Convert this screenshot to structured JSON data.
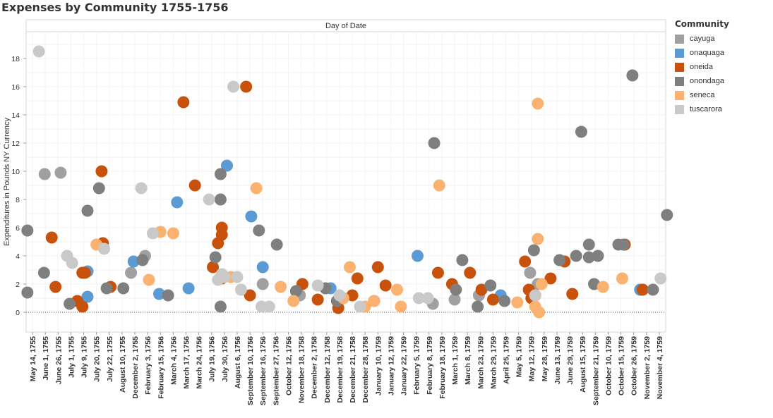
{
  "title": "Expenses by Community 1755-1756",
  "chart_data": {
    "type": "scatter",
    "title": "Expenses by Community 1755-1756",
    "header": "Day of Date",
    "ylabel": "Expenditures in Pounds NY Currency",
    "ylim": [
      -1.4,
      19.9
    ],
    "yticks": [
      0,
      2,
      4,
      6,
      8,
      10,
      12,
      14,
      16,
      18
    ],
    "grid": true,
    "legend_title": "Community",
    "legend_position": "right",
    "categories": [
      "May 14, 1755",
      "June 1, 1755",
      "June 26, 1755",
      "July 1, 1755",
      "July 9, 1755",
      "July 20, 1755",
      "July 22, 1755",
      "August 10, 1755",
      "December 2, 1755",
      "February 3, 1756",
      "February 15, 1756",
      "March 4, 1756",
      "March 17, 1756",
      "March 24, 1756",
      "July 19, 1756",
      "July 30, 1756",
      "August 6, 1756",
      "September 10, 1756",
      "September 16, 1756",
      "September 27, 1756",
      "October 12, 1756",
      "November 18, 1758",
      "December 2, 1758",
      "December 12, 1758",
      "December 19, 1758",
      "December 21, 1758",
      "December 28, 1758",
      "January 10, 1759",
      "January 12, 1759",
      "January 22, 1759",
      "February 5, 1759",
      "February 8, 1759",
      "February 18, 1759",
      "March 1, 1759",
      "March 8, 1759",
      "March 23, 1759",
      "March 29, 1759",
      "April 25, 1759",
      "May 5, 1759",
      "May 12, 1759",
      "May 28, 1759",
      "June 13, 1759",
      "June 29, 1759",
      "August 15, 1759",
      "September 21, 1759",
      "October 10, 1759",
      "October 15, 1759",
      "October 26, 1759",
      "November 2, 1759",
      "November 4, 1759"
    ],
    "series": [
      {
        "name": "cayuga",
        "color": "#a0a0a0",
        "points": [
          [
            0.95,
            9.8
          ],
          [
            2.2,
            9.9
          ],
          [
            7.7,
            2.8
          ],
          [
            8.8,
            4.0
          ],
          [
            18.0,
            2.0
          ],
          [
            20.9,
            1.2
          ],
          [
            34.9,
            1.2
          ],
          [
            33.0,
            0.9
          ],
          [
            38.9,
            2.8
          ],
          [
            39.5,
            2.0
          ],
          [
            31.3,
            0.6
          ]
        ]
      },
      {
        "name": "onaquaga",
        "color": "#5b9bd3",
        "points": [
          [
            4.3,
            2.9
          ],
          [
            4.3,
            1.1
          ],
          [
            7.9,
            3.6
          ],
          [
            9.9,
            1.3
          ],
          [
            11.3,
            7.8
          ],
          [
            12.2,
            1.7
          ],
          [
            15.2,
            10.4
          ],
          [
            17.1,
            6.8
          ],
          [
            18.0,
            3.2
          ],
          [
            23.3,
            1.7
          ],
          [
            30.1,
            4.0
          ],
          [
            36.6,
            1.2
          ],
          [
            47.5,
            1.6
          ]
        ]
      },
      {
        "name": "oneida",
        "color": "#c8510b",
        "points": [
          [
            1.5,
            5.3
          ],
          [
            1.8,
            1.8
          ],
          [
            3.5,
            0.8
          ],
          [
            3.9,
            2.8
          ],
          [
            3.9,
            0.4
          ],
          [
            4.1,
            2.8
          ],
          [
            5.4,
            10.0
          ],
          [
            5.5,
            4.9
          ],
          [
            6.1,
            1.8
          ],
          [
            11.8,
            14.9
          ],
          [
            12.7,
            9.0
          ],
          [
            14.1,
            3.2
          ],
          [
            14.5,
            4.9
          ],
          [
            14.8,
            6.0
          ],
          [
            14.8,
            5.5
          ],
          [
            14.8,
            2.4
          ],
          [
            16.7,
            16.0
          ],
          [
            17.0,
            1.2
          ],
          [
            21.1,
            2.0
          ],
          [
            22.3,
            0.9
          ],
          [
            23.9,
            0.3
          ],
          [
            25.0,
            1.2
          ],
          [
            25.4,
            2.4
          ],
          [
            26.7,
            0.8
          ],
          [
            27.0,
            3.2
          ],
          [
            27.6,
            1.9
          ],
          [
            31.7,
            2.8
          ],
          [
            32.8,
            2.0
          ],
          [
            34.2,
            2.8
          ],
          [
            35.1,
            1.6
          ],
          [
            36.0,
            0.9
          ],
          [
            38.5,
            3.6
          ],
          [
            38.8,
            1.6
          ],
          [
            39.0,
            1.0
          ],
          [
            39.3,
            1.2
          ],
          [
            40.5,
            2.4
          ],
          [
            41.6,
            3.6
          ],
          [
            42.2,
            1.3
          ],
          [
            46.3,
            4.8
          ],
          [
            47.7,
            1.6
          ]
        ]
      },
      {
        "name": "onondaga",
        "color": "#7f7f7f",
        "points": [
          [
            -0.4,
            5.8
          ],
          [
            -0.4,
            1.4
          ],
          [
            0.9,
            2.8
          ],
          [
            2.9,
            0.6
          ],
          [
            4.3,
            7.2
          ],
          [
            5.2,
            8.8
          ],
          [
            5.8,
            1.7
          ],
          [
            7.1,
            1.7
          ],
          [
            8.6,
            3.7
          ],
          [
            10.6,
            1.2
          ],
          [
            14.3,
            3.9
          ],
          [
            14.7,
            9.8
          ],
          [
            14.7,
            8.0
          ],
          [
            14.7,
            0.4
          ],
          [
            17.7,
            5.8
          ],
          [
            19.1,
            4.8
          ],
          [
            20.6,
            1.5
          ],
          [
            22.9,
            1.7
          ],
          [
            23.8,
            0.8
          ],
          [
            31.4,
            12.0
          ],
          [
            33.1,
            1.6
          ],
          [
            33.6,
            3.7
          ],
          [
            34.8,
            0.4
          ],
          [
            35.8,
            1.9
          ],
          [
            36.9,
            0.8
          ],
          [
            39.2,
            4.4
          ],
          [
            41.2,
            3.7
          ],
          [
            42.5,
            4.0
          ],
          [
            42.9,
            12.8
          ],
          [
            43.5,
            4.8
          ],
          [
            43.5,
            3.9
          ],
          [
            43.9,
            2.0
          ],
          [
            44.2,
            4.0
          ],
          [
            45.8,
            4.8
          ],
          [
            46.2,
            4.8
          ],
          [
            46.9,
            16.8
          ],
          [
            48.5,
            1.6
          ],
          [
            49.6,
            6.9
          ]
        ]
      },
      {
        "name": "seneca",
        "color": "#fbb270",
        "points": [
          [
            5.0,
            4.8
          ],
          [
            9.1,
            2.3
          ],
          [
            10.0,
            5.7
          ],
          [
            11.0,
            5.6
          ],
          [
            15.5,
            2.5
          ],
          [
            17.5,
            8.8
          ],
          [
            19.4,
            1.8
          ],
          [
            20.4,
            0.8
          ],
          [
            24.3,
            1.0
          ],
          [
            24.8,
            3.2
          ],
          [
            26.0,
            0.4
          ],
          [
            26.7,
            0.8
          ],
          [
            28.5,
            1.6
          ],
          [
            28.8,
            0.4
          ],
          [
            31.8,
            9.0
          ],
          [
            37.9,
            0.7
          ],
          [
            39.5,
            14.8
          ],
          [
            39.5,
            5.2
          ],
          [
            39.3,
            0.4
          ],
          [
            39.8,
            2.0
          ],
          [
            39.6,
            0.0
          ],
          [
            44.6,
            1.8
          ],
          [
            46.1,
            2.4
          ]
        ]
      },
      {
        "name": "tuscarora",
        "color": "#c9c9c9",
        "points": [
          [
            0.5,
            18.5
          ],
          [
            2.7,
            4.0
          ],
          [
            3.1,
            3.5
          ],
          [
            5.6,
            4.5
          ],
          [
            8.5,
            8.8
          ],
          [
            9.4,
            5.6
          ],
          [
            13.8,
            8.0
          ],
          [
            14.5,
            2.3
          ],
          [
            14.8,
            2.7
          ],
          [
            15.7,
            16.0
          ],
          [
            15.0,
            2.5
          ],
          [
            16.0,
            2.5
          ],
          [
            16.3,
            1.6
          ],
          [
            17.9,
            0.4
          ],
          [
            18.5,
            0.4
          ],
          [
            22.3,
            1.9
          ],
          [
            24.0,
            1.2
          ],
          [
            25.6,
            0.4
          ],
          [
            30.2,
            1.0
          ],
          [
            30.9,
            1.0
          ],
          [
            39.3,
            1.2
          ],
          [
            49.1,
            2.4
          ]
        ]
      }
    ]
  }
}
